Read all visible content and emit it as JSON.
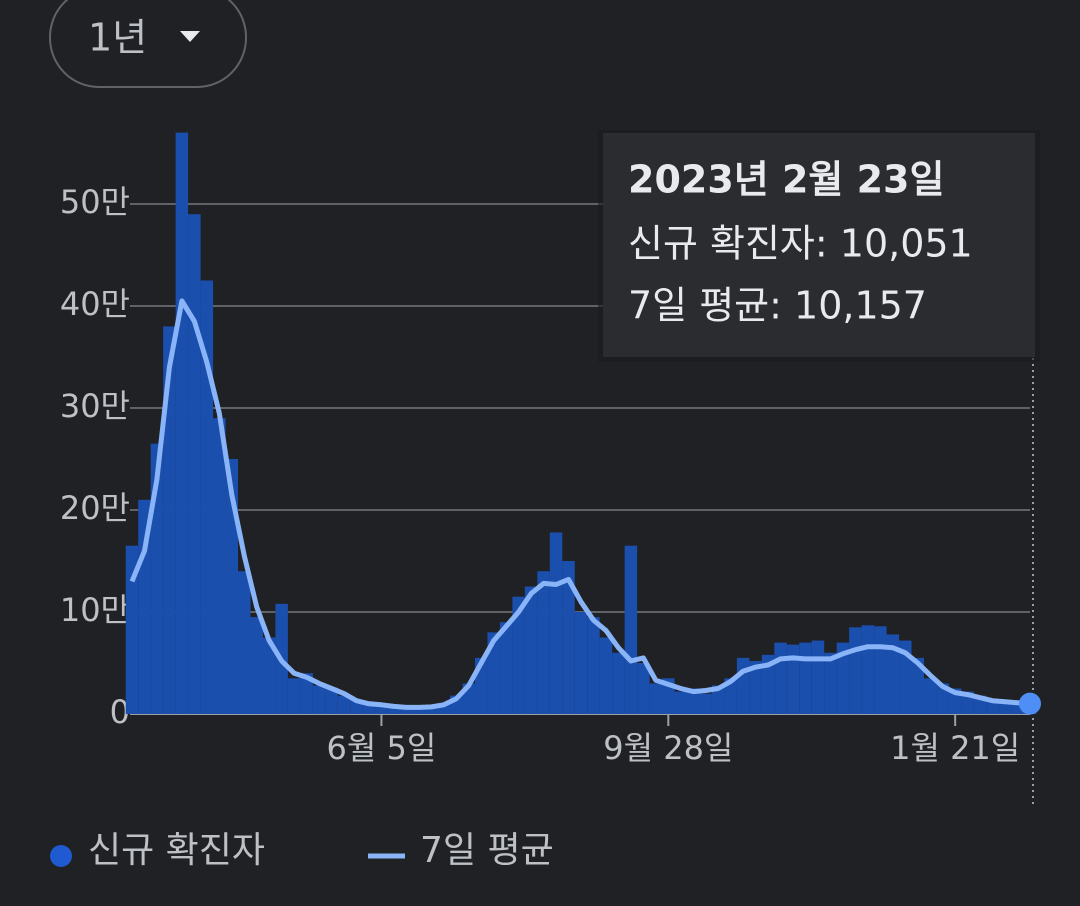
{
  "range_selector": "1년",
  "chart_data": {
    "type": "combo",
    "categories": [
      null,
      null,
      null,
      null,
      null,
      null,
      null,
      null,
      null,
      null,
      null,
      null,
      null,
      null,
      null,
      null,
      null,
      null,
      null,
      null,
      "6월 5일",
      null,
      null,
      null,
      null,
      null,
      null,
      null,
      null,
      null,
      null,
      null,
      null,
      null,
      null,
      null,
      null,
      null,
      null,
      null,
      null,
      null,
      null,
      "9월 28일",
      null,
      null,
      null,
      null,
      null,
      null,
      null,
      null,
      null,
      null,
      null,
      null,
      null,
      null,
      null,
      null,
      null,
      null,
      null,
      null,
      null,
      null,
      "1월 21일",
      null,
      null,
      null,
      null,
      null,
      null
    ],
    "series": [
      {
        "name": "신규 확진자",
        "type": "bar",
        "color": "#1b4fae",
        "values": [
          165000,
          210000,
          265000,
          380000,
          570000,
          490000,
          425000,
          290000,
          250000,
          140000,
          95000,
          75000,
          108000,
          35000,
          40000,
          28000,
          26000,
          18000,
          14000,
          9000,
          7000,
          9000,
          6000,
          7000,
          8000,
          10000,
          18000,
          30000,
          55000,
          80000,
          90000,
          115000,
          125000,
          140000,
          178000,
          150000,
          100000,
          95000,
          75000,
          60000,
          165000,
          50000,
          30000,
          35000,
          22000,
          25000,
          20000,
          28000,
          35000,
          55000,
          52000,
          58000,
          70000,
          68000,
          70000,
          72000,
          60000,
          70000,
          85000,
          87000,
          86000,
          78000,
          72000,
          55000,
          35000,
          30000,
          25000,
          22000,
          18000,
          15000,
          14000,
          12000,
          10051
        ]
      },
      {
        "name": "7일 평균",
        "type": "line",
        "color": "#8ab4f8",
        "values": [
          130000,
          160000,
          230000,
          340000,
          405000,
          385000,
          345000,
          295000,
          215000,
          155000,
          105000,
          72000,
          52000,
          40000,
          36000,
          30000,
          25000,
          20000,
          13000,
          10000,
          9000,
          7500,
          6500,
          6500,
          7000,
          9000,
          15000,
          28000,
          50000,
          72000,
          86000,
          100000,
          118000,
          128000,
          127000,
          132000,
          110000,
          92000,
          82000,
          65000,
          52000,
          55000,
          33000,
          29000,
          25000,
          22000,
          23000,
          25000,
          32000,
          42000,
          46000,
          48000,
          54000,
          55000,
          54000,
          54000,
          54000,
          59000,
          63000,
          66000,
          66000,
          65000,
          60000,
          50000,
          38000,
          27000,
          21000,
          19000,
          16000,
          13000,
          12000,
          11000,
          10157
        ]
      }
    ],
    "ylim": [
      0,
      570000
    ],
    "yticks": [
      0,
      {
        "value": 100000,
        "label": "10만"
      },
      {
        "value": 200000,
        "label": "20만"
      },
      {
        "value": 300000,
        "label": "30만"
      },
      {
        "value": 400000,
        "label": "40만"
      },
      {
        "value": 500000,
        "label": "50만"
      }
    ],
    "grid": true,
    "legend": "bottom",
    "tooltip": {
      "title": "2023년 2월 23일",
      "lines": [
        "신규 확진자: 10,051",
        "7일 평균: 10,157"
      ]
    }
  }
}
